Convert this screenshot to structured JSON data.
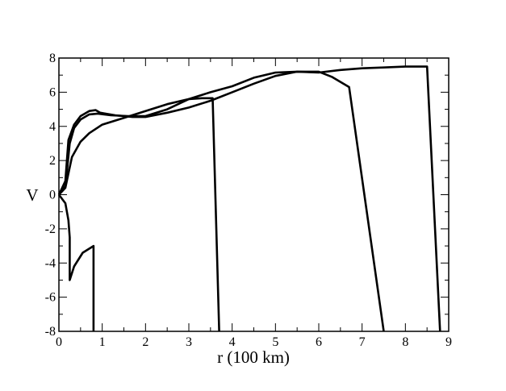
{
  "chart_data": {
    "type": "line",
    "title": "",
    "xlabel": "r  (100 km)",
    "ylabel": "V",
    "xlim": [
      0,
      9
    ],
    "ylim": [
      -8,
      8
    ],
    "xticks": [
      0,
      1,
      2,
      3,
      4,
      5,
      6,
      7,
      8,
      9
    ],
    "yticks": [
      -8,
      -6,
      -4,
      -2,
      0,
      2,
      4,
      6,
      8
    ],
    "grid": false,
    "legend": null,
    "series": [
      {
        "name": "curve-1",
        "color": "#000000",
        "points": [
          [
            0,
            0
          ],
          [
            0.15,
            0.5
          ],
          [
            0.25,
            3.0
          ],
          [
            0.35,
            3.9
          ],
          [
            0.5,
            4.4
          ],
          [
            0.7,
            4.7
          ],
          [
            0.9,
            4.75
          ],
          [
            1.2,
            4.65
          ],
          [
            1.6,
            4.6
          ],
          [
            2.0,
            4.6
          ],
          [
            2.5,
            5.0
          ],
          [
            3.0,
            5.6
          ],
          [
            3.3,
            5.65
          ],
          [
            3.55,
            5.65
          ],
          [
            3.7,
            -8
          ]
        ]
      },
      {
        "name": "curve-2",
        "color": "#000000",
        "points": [
          [
            0,
            0
          ],
          [
            0.15,
            0.8
          ],
          [
            0.22,
            3.2
          ],
          [
            0.35,
            4.1
          ],
          [
            0.5,
            4.6
          ],
          [
            0.7,
            4.9
          ],
          [
            0.85,
            4.95
          ],
          [
            0.95,
            4.8
          ],
          [
            1.3,
            4.65
          ],
          [
            1.7,
            4.55
          ],
          [
            2.0,
            4.55
          ],
          [
            2.5,
            4.8
          ],
          [
            3.0,
            5.1
          ],
          [
            3.5,
            5.5
          ],
          [
            4.0,
            6.0
          ],
          [
            4.5,
            6.5
          ],
          [
            5.0,
            6.95
          ],
          [
            5.5,
            7.2
          ],
          [
            6.0,
            7.2
          ],
          [
            6.3,
            6.9
          ],
          [
            6.7,
            6.3
          ],
          [
            7.5,
            -8
          ]
        ]
      },
      {
        "name": "curve-3",
        "color": "#000000",
        "points": [
          [
            0,
            0
          ],
          [
            0.15,
            0.4
          ],
          [
            0.3,
            2.2
          ],
          [
            0.5,
            3.1
          ],
          [
            0.7,
            3.6
          ],
          [
            1.0,
            4.1
          ],
          [
            1.5,
            4.5
          ],
          [
            2.0,
            4.9
          ],
          [
            2.5,
            5.3
          ],
          [
            3.0,
            5.6
          ],
          [
            3.5,
            6.0
          ],
          [
            4.0,
            6.35
          ],
          [
            4.5,
            6.85
          ],
          [
            5.0,
            7.15
          ],
          [
            5.5,
            7.2
          ],
          [
            6.0,
            7.15
          ],
          [
            6.5,
            7.3
          ],
          [
            7.0,
            7.4
          ],
          [
            7.5,
            7.45
          ],
          [
            8.0,
            7.5
          ],
          [
            8.5,
            7.5
          ],
          [
            8.8,
            -8
          ]
        ]
      },
      {
        "name": "curve-negative",
        "color": "#000000",
        "points": [
          [
            0,
            0
          ],
          [
            0.15,
            -0.5
          ],
          [
            0.22,
            -1.5
          ],
          [
            0.25,
            -2.5
          ],
          [
            0.25,
            -5.0
          ],
          [
            0.35,
            -4.2
          ],
          [
            0.55,
            -3.4
          ],
          [
            0.8,
            -3.0
          ],
          [
            0.8,
            -8
          ]
        ]
      }
    ]
  }
}
